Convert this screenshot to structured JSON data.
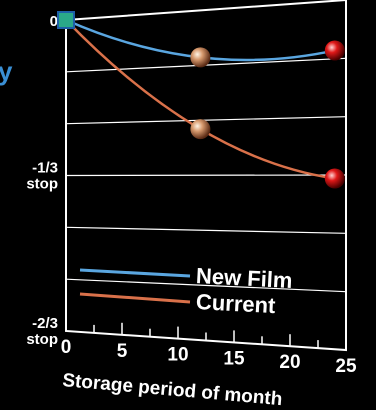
{
  "fragment_text": "y",
  "chart_data": {
    "type": "line",
    "xlabel": "Storage period of month",
    "ylabel": "",
    "xlim": [
      0,
      25
    ],
    "ylim": [
      -0.6667,
      0
    ],
    "x_ticks": [
      "0",
      "5",
      "10",
      "15",
      "20",
      "25"
    ],
    "y_ticks": [
      {
        "lines": [
          "0"
        ],
        "value": 0
      },
      {
        "lines": [
          "-1/3",
          "stop"
        ],
        "value": -0.3333
      },
      {
        "lines": [
          "-2/3",
          "stop"
        ],
        "value": -0.6667
      }
    ],
    "grid": "horizontal",
    "legend_position": "bottom-left",
    "series": [
      {
        "name": "New Film",
        "color": "#5aa6e0",
        "x": [
          0,
          12,
          24
        ],
        "y": [
          0,
          -0.095,
          -0.095
        ],
        "markers": [
          12,
          24
        ]
      },
      {
        "name": "Current",
        "color": "#d9714a",
        "x": [
          0,
          12,
          24
        ],
        "y": [
          0,
          -0.24,
          -0.34
        ],
        "markers": [
          12,
          24
        ]
      }
    ]
  }
}
